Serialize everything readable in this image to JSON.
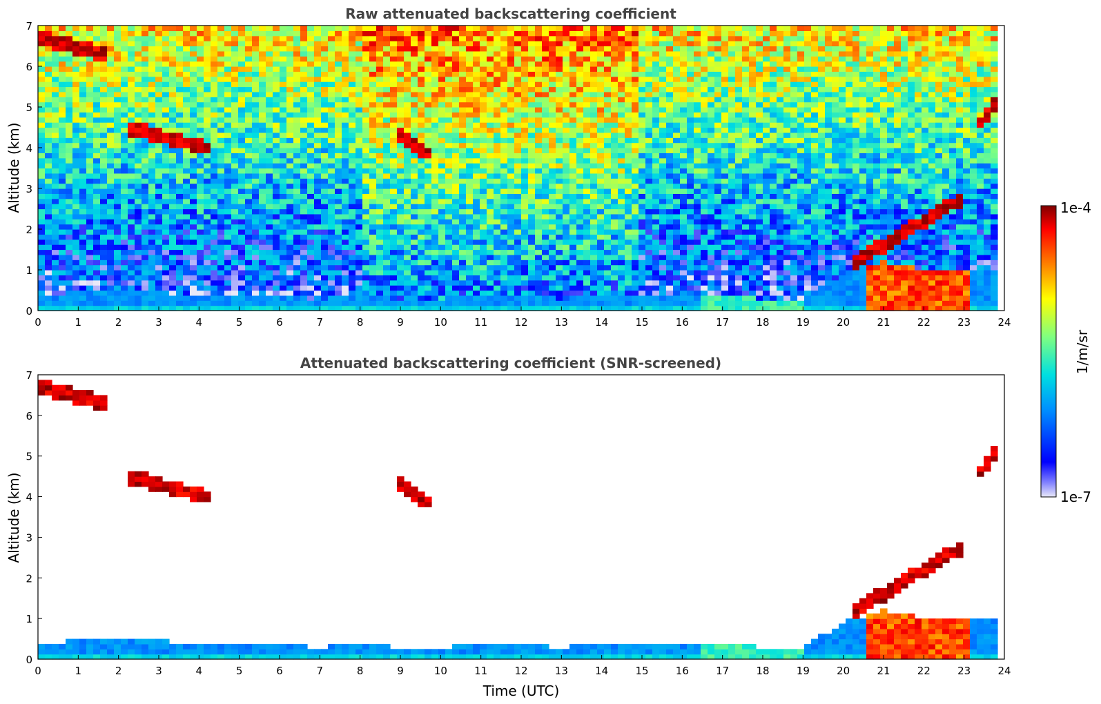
{
  "chart_data": [
    {
      "type": "heatmap",
      "title": "Raw attenuated backscattering coefficient",
      "xlabel": "",
      "ylabel": "Altitude (km)",
      "xlim": [
        0,
        24
      ],
      "ylim": [
        0,
        7
      ],
      "xticks": [
        "0",
        "1",
        "2",
        "3",
        "4",
        "5",
        "6",
        "7",
        "8",
        "9",
        "10",
        "11",
        "12",
        "13",
        "14",
        "15",
        "16",
        "17",
        "18",
        "19",
        "20",
        "21",
        "22",
        "23",
        "24"
      ],
      "yticks": [
        "0",
        "1",
        "2",
        "3",
        "4",
        "5",
        "6",
        "7"
      ],
      "features": [
        {
          "name": "boundary layer",
          "x": [
            0,
            24
          ],
          "y_top": [
            0.4,
            0.45,
            0.55,
            0.45,
            0.4,
            0.35,
            0.35,
            0.3,
            0.35,
            0.3,
            0.3,
            0.35,
            0.35,
            0.3,
            0.35,
            0.35,
            0.4,
            0.35,
            0.3,
            0.3,
            0.9,
            1.2,
            1.0,
            1.0,
            1.0
          ]
        },
        {
          "name": "cloud layer",
          "x": [
            0.0,
            1.7
          ],
          "y": [
            6.7,
            6.3
          ]
        },
        {
          "name": "cloud layer",
          "x": [
            2.2,
            4.2
          ],
          "y": [
            4.5,
            4.0
          ]
        },
        {
          "name": "cloud layer",
          "x": [
            8.9,
            9.8
          ],
          "y": [
            4.4,
            3.8
          ]
        },
        {
          "name": "cloud layer",
          "x": [
            20.3,
            23.0
          ],
          "y": [
            1.2,
            2.8
          ]
        },
        {
          "name": "cloud layer",
          "x": [
            23.3,
            23.8
          ],
          "y": [
            4.5,
            5.1
          ]
        }
      ]
    },
    {
      "type": "heatmap",
      "title": "Attenuated backscattering coefficient (SNR-screened)",
      "xlabel": "Time (UTC)",
      "ylabel": "Altitude (km)",
      "xlim": [
        0,
        24
      ],
      "ylim": [
        0,
        7
      ],
      "xticks": [
        "0",
        "1",
        "2",
        "3",
        "4",
        "5",
        "6",
        "7",
        "8",
        "9",
        "10",
        "11",
        "12",
        "13",
        "14",
        "15",
        "16",
        "17",
        "18",
        "19",
        "20",
        "21",
        "22",
        "23",
        "24"
      ],
      "yticks": [
        "0",
        "1",
        "2",
        "3",
        "4",
        "5",
        "6",
        "7"
      ],
      "screened": true
    }
  ],
  "colorbar": {
    "label": "1/m/sr",
    "max_label": "1e-4",
    "min_label": "1e-7",
    "scale": "log",
    "colors": [
      "#e8e8f8",
      "#0000ff",
      "#0090ff",
      "#00e0e0",
      "#80ff80",
      "#ffff00",
      "#ff8000",
      "#ff0000",
      "#800000"
    ]
  }
}
